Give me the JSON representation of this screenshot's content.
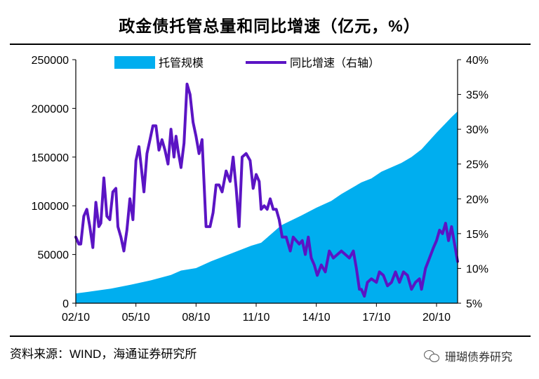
{
  "page": {
    "title": "政金债托管总量和同比增速（亿元，%）",
    "source": "资料来源：WIND，海通证券研究所",
    "watermark": "珊瑚债券研究"
  },
  "colors": {
    "area": "#00AEEF",
    "line": "#5B14C4",
    "axis": "#000000"
  },
  "chart_data": {
    "type": "area",
    "title": "政金债托管总量和同比增速（亿元，%）",
    "legend_position": "top-center",
    "legend": [
      "托管规模",
      "同比增速（右轴）"
    ],
    "x_ticks": [
      "02/10",
      "05/10",
      "08/10",
      "11/10",
      "14/10",
      "17/10",
      "20/10"
    ],
    "x_tick_years": [
      2002.75,
      2005.75,
      2008.75,
      2011.75,
      2014.75,
      2017.75,
      2020.75
    ],
    "x_range": [
      2002.75,
      2021.8
    ],
    "y_left": {
      "label": "",
      "range": [
        0,
        250000
      ],
      "ticks": [
        0,
        50000,
        100000,
        150000,
        200000,
        250000
      ]
    },
    "y_right": {
      "label": "",
      "range": [
        5,
        40
      ],
      "ticks": [
        "5%",
        "10%",
        "15%",
        "20%",
        "25%",
        "30%",
        "35%",
        "40%"
      ],
      "tick_values": [
        5,
        10,
        15,
        20,
        25,
        30,
        35,
        40
      ]
    },
    "series": [
      {
        "name": "托管规模",
        "type": "area",
        "axis": "left",
        "x": [
          2002.75,
          2003.5,
          2004.5,
          2005.5,
          2006.5,
          2007.5,
          2008.0,
          2008.75,
          2009.5,
          2010.5,
          2011.5,
          2012.0,
          2012.5,
          2013.0,
          2014.0,
          2014.75,
          2015.5,
          2016.0,
          2017.0,
          2017.5,
          2018.0,
          2019.0,
          2019.5,
          2020.0,
          2020.75,
          2021.5,
          2021.8
        ],
        "values": [
          10000,
          12000,
          15000,
          19000,
          23500,
          29000,
          33500,
          36000,
          43000,
          51000,
          59000,
          62000,
          71000,
          80000,
          90000,
          98000,
          105000,
          112000,
          124000,
          128000,
          135000,
          144000,
          150000,
          158000,
          175000,
          191000,
          197000
        ]
      },
      {
        "name": "同比增速（右轴）",
        "type": "line",
        "axis": "right",
        "x": [
          2002.75,
          2002.9,
          2003.0,
          2003.15,
          2003.3,
          2003.45,
          2003.6,
          2003.75,
          2003.9,
          2004.0,
          2004.15,
          2004.3,
          2004.45,
          2004.6,
          2004.75,
          2004.85,
          2005.0,
          2005.15,
          2005.3,
          2005.45,
          2005.6,
          2005.75,
          2005.9,
          2006.0,
          2006.15,
          2006.3,
          2006.45,
          2006.6,
          2006.75,
          2006.9,
          2007.05,
          2007.2,
          2007.35,
          2007.5,
          2007.65,
          2007.75,
          2007.85,
          2008.0,
          2008.15,
          2008.3,
          2008.45,
          2008.6,
          2008.75,
          2008.9,
          2009.05,
          2009.25,
          2009.45,
          2009.6,
          2009.75,
          2009.9,
          2010.05,
          2010.25,
          2010.45,
          2010.6,
          2010.75,
          2010.9,
          2011.05,
          2011.25,
          2011.45,
          2011.6,
          2011.75,
          2011.9,
          2012.0,
          2012.15,
          2012.3,
          2012.45,
          2012.6,
          2012.75,
          2012.9,
          2013.05,
          2013.25,
          2013.45,
          2013.6,
          2013.75,
          2013.9,
          2014.05,
          2014.2,
          2014.35,
          2014.5,
          2014.65,
          2014.8,
          2015.0,
          2015.2,
          2015.4,
          2015.6,
          2015.8,
          2016.0,
          2016.2,
          2016.4,
          2016.6,
          2016.75,
          2016.9,
          2017.0,
          2017.15,
          2017.3,
          2017.5,
          2017.75,
          2017.9,
          2018.1,
          2018.3,
          2018.5,
          2018.7,
          2018.9,
          2019.1,
          2019.3,
          2019.5,
          2019.7,
          2019.9,
          2020.0,
          2020.2,
          2020.4,
          2020.6,
          2020.75,
          2020.9,
          2021.05,
          2021.2,
          2021.35,
          2021.5,
          2021.65,
          2021.8
        ],
        "values": [
          14.5,
          13.5,
          13.5,
          17.5,
          18.5,
          16.0,
          13.0,
          19.5,
          16.0,
          16.5,
          23.0,
          17.5,
          17.0,
          21.0,
          21.5,
          16.0,
          14.5,
          12.5,
          15.5,
          20.0,
          17.0,
          25.5,
          27.5,
          25.0,
          21.0,
          26.5,
          28.5,
          30.5,
          30.5,
          27.0,
          28.5,
          27.0,
          25.0,
          30.0,
          26.0,
          29.0,
          27.0,
          24.5,
          28.0,
          36.5,
          35.0,
          31.0,
          29.0,
          26.5,
          28.5,
          16.0,
          16.0,
          18.0,
          22.0,
          22.0,
          21.0,
          24.0,
          22.5,
          26.0,
          21.5,
          16.0,
          26.0,
          26.5,
          25.5,
          21.5,
          23.5,
          22.5,
          18.5,
          19.0,
          18.5,
          20.0,
          18.5,
          18.5,
          17.0,
          14.5,
          14.5,
          12.5,
          14.5,
          14.0,
          13.5,
          14.0,
          12.0,
          14.5,
          11.5,
          10.5,
          9.0,
          10.5,
          9.5,
          12.5,
          11.5,
          12.0,
          12.5,
          12.0,
          11.5,
          12.5,
          10.0,
          7.0,
          7.0,
          6.0,
          8.0,
          8.5,
          8.0,
          9.5,
          9.0,
          7.5,
          8.0,
          9.5,
          8.0,
          9.5,
          9.0,
          7.0,
          8.0,
          8.5,
          7.0,
          10.0,
          11.5,
          13.0,
          14.0,
          15.5,
          15.0,
          16.5,
          14.0,
          16.0,
          13.5,
          11.0
        ]
      }
    ]
  }
}
